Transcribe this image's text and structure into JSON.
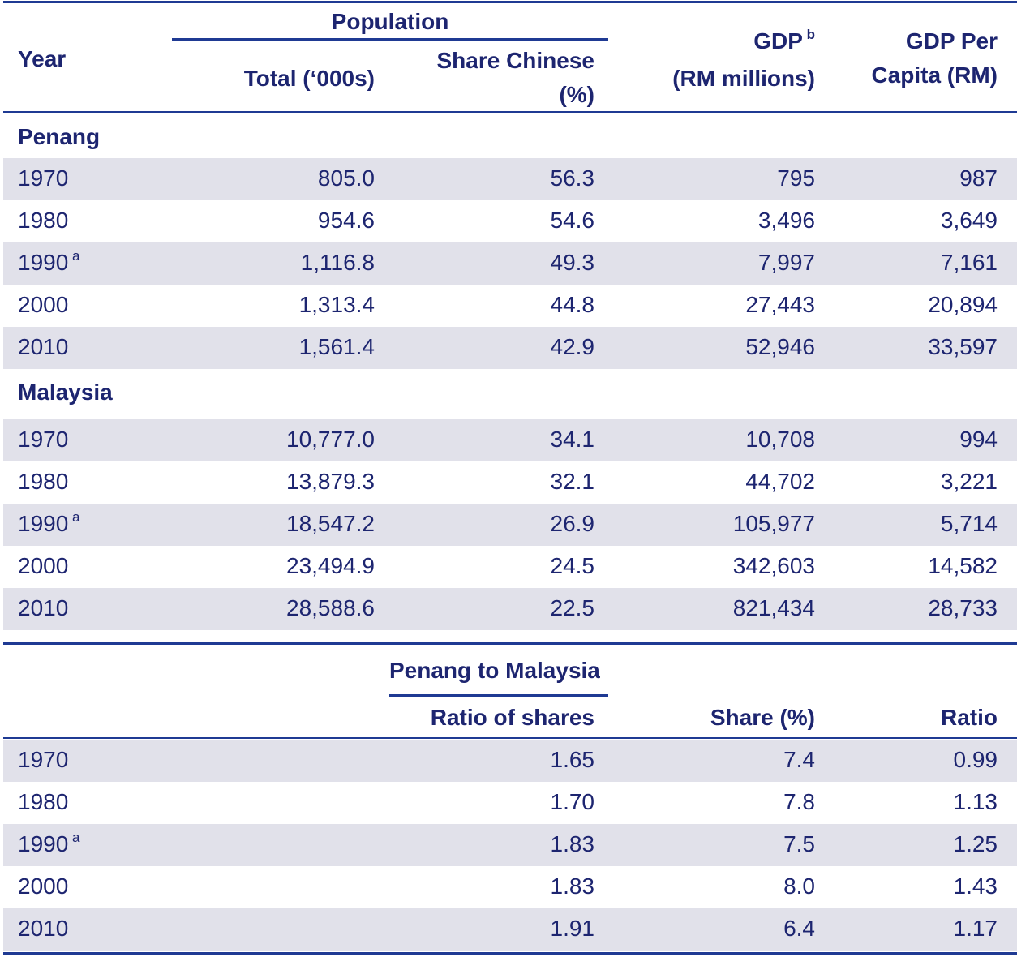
{
  "header": {
    "year": "Year",
    "population": "Population",
    "total": "Total (‘000s)",
    "share_chinese_1": "Share Chinese",
    "share_chinese_2": "(%)",
    "gdp": "GDP",
    "gdp_note": "b",
    "gdp_unit": "(RM millions)",
    "gdp_per_capita_1": "GDP Per",
    "gdp_per_capita_2": "Capita (RM)"
  },
  "sections": [
    {
      "name": "Penang",
      "rows": [
        {
          "year": "1970",
          "cells": [
            "805.0",
            "56.3",
            "795",
            "987"
          ]
        },
        {
          "year": "1980",
          "cells": [
            "954.6",
            "54.6",
            "3,496",
            "3,649"
          ]
        },
        {
          "year": "1990",
          "note": "a",
          "cells": [
            "1,116.8",
            "49.3",
            "7,997",
            "7,161"
          ]
        },
        {
          "year": "2000",
          "cells": [
            "1,313.4",
            "44.8",
            "27,443",
            "20,894"
          ]
        },
        {
          "year": "2010",
          "cells": [
            "1,561.4",
            "42.9",
            "52,946",
            "33,597"
          ]
        }
      ]
    },
    {
      "name": "Malaysia",
      "rows": [
        {
          "year": "1970",
          "cells": [
            "10,777.0",
            "34.1",
            "10,708",
            "994"
          ]
        },
        {
          "year": "1980",
          "cells": [
            "13,879.3",
            "32.1",
            "44,702",
            "3,221"
          ]
        },
        {
          "year": "1990",
          "note": "a",
          "cells": [
            "18,547.2",
            "26.9",
            "105,977",
            "5,714"
          ]
        },
        {
          "year": "2000",
          "cells": [
            "23,494.9",
            "24.5",
            "342,603",
            "14,582"
          ]
        },
        {
          "year": "2010",
          "cells": [
            "28,588.6",
            "22.5",
            "821,434",
            "28,733"
          ]
        }
      ]
    }
  ],
  "ratio_table": {
    "group": "Penang to Malaysia",
    "columns": [
      "Ratio of shares",
      "Share (%)",
      "Ratio"
    ],
    "rows": [
      {
        "year": "1970",
        "cells": [
          "1.65",
          "7.4",
          "0.99"
        ]
      },
      {
        "year": "1980",
        "cells": [
          "1.70",
          "7.8",
          "1.13"
        ]
      },
      {
        "year": "1990",
        "note": "a",
        "cells": [
          "1.83",
          "7.5",
          "1.25"
        ]
      },
      {
        "year": "2000",
        "cells": [
          "1.83",
          "8.0",
          "1.43"
        ]
      },
      {
        "year": "2010",
        "cells": [
          "1.91",
          "6.4",
          "1.17"
        ]
      }
    ]
  }
}
